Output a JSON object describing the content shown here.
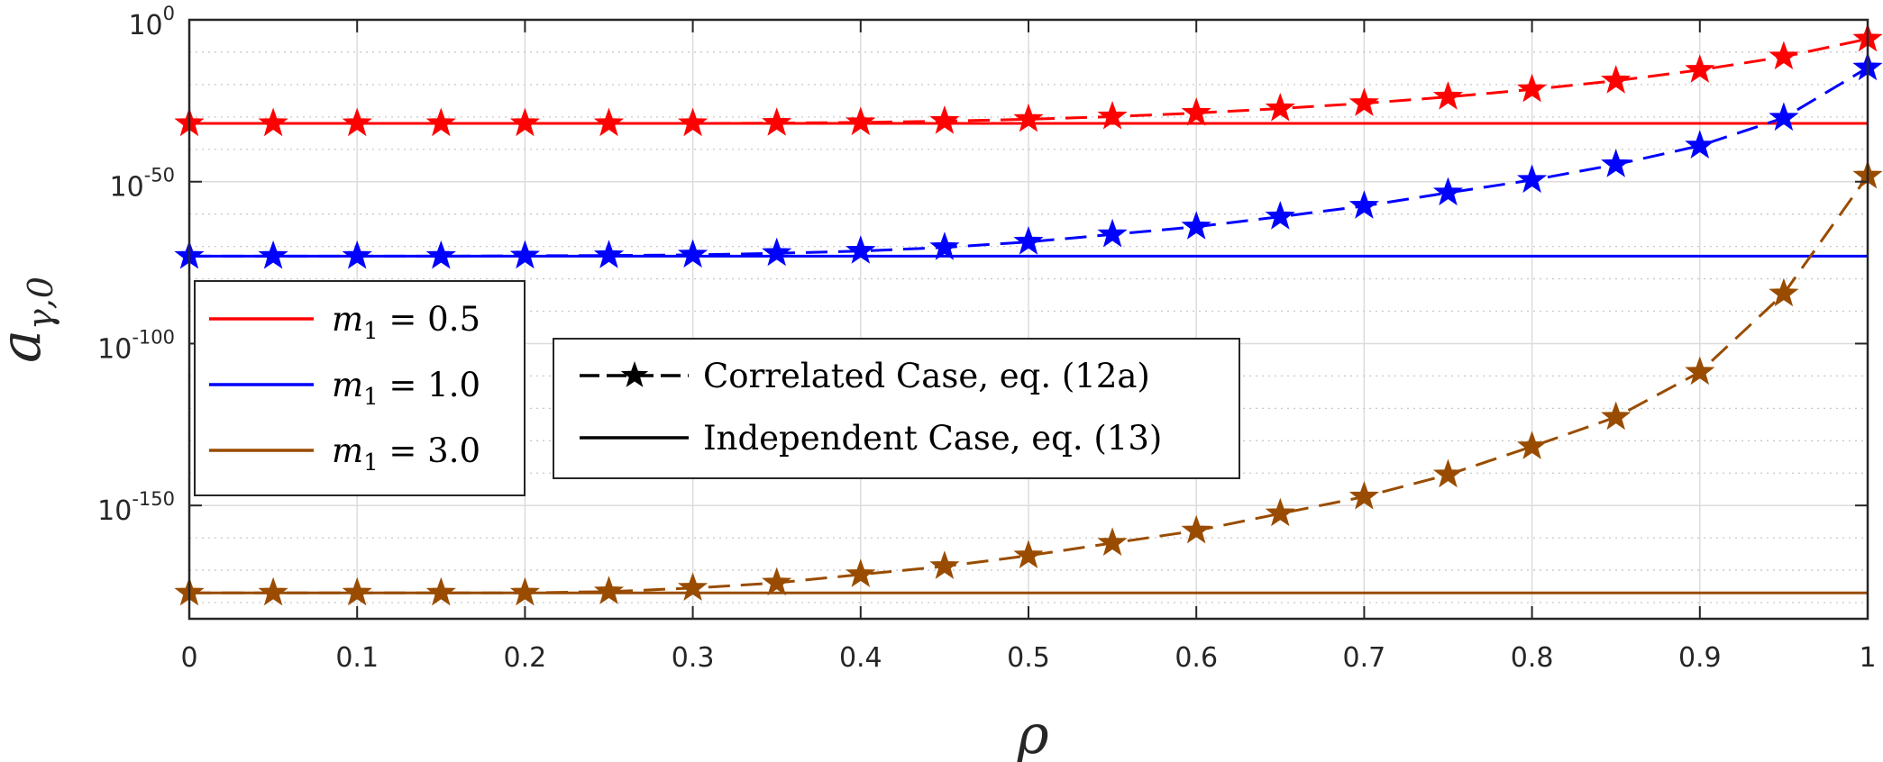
{
  "chart_data": {
    "type": "line",
    "xlabel": "ρ",
    "ylabel_main": "a",
    "ylabel_sub": "γ,0",
    "y_scale": "log",
    "xlim": [
      0,
      1
    ],
    "ylim_exp": [
      -185,
      0
    ],
    "x_ticks": [
      "0",
      "0.1",
      "0.2",
      "0.3",
      "0.4",
      "0.5",
      "0.6",
      "0.7",
      "0.8",
      "0.9",
      "1"
    ],
    "y_ticks": [
      {
        "base": "10",
        "exp": "0",
        "value_exp": 0
      },
      {
        "base": "10",
        "exp": "-50",
        "value_exp": -50
      },
      {
        "base": "10",
        "exp": "-100",
        "value_exp": -100
      },
      {
        "base": "10",
        "exp": "-150",
        "value_exp": -150
      }
    ],
    "grid": true,
    "x": [
      0,
      0.05,
      0.1,
      0.15,
      0.2,
      0.25,
      0.3,
      0.35,
      0.4,
      0.45,
      0.5,
      0.55,
      0.6,
      0.65,
      0.7,
      0.75,
      0.8,
      0.85,
      0.9,
      0.95,
      1.0
    ],
    "series": [
      {
        "name": "m_1 = 0.5",
        "color": "#ff0000",
        "correlated_exp": [
          -32,
          -32,
          -32,
          -32,
          -32,
          -32,
          -32,
          -31.9,
          -31.7,
          -31.3,
          -30.7,
          -29.9,
          -28.8,
          -27.4,
          -25.8,
          -23.8,
          -21.5,
          -18.8,
          -15.5,
          -11.4,
          -5.9
        ],
        "independent_exp": -32
      },
      {
        "name": "m_1 = 1.0",
        "color": "#0000ff",
        "correlated_exp": [
          -73,
          -73,
          -73,
          -73,
          -72.9,
          -72.8,
          -72.6,
          -72.1,
          -71.4,
          -70.3,
          -68.6,
          -66.3,
          -63.9,
          -60.8,
          -57.5,
          -53.4,
          -49.5,
          -44.7,
          -38.9,
          -30.3,
          -14.8
        ],
        "independent_exp": -73
      },
      {
        "name": "m_1 = 3.0",
        "color": "#994c00",
        "correlated_exp": [
          -177,
          -177,
          -177,
          -177,
          -177,
          -176.6,
          -175.5,
          -173.9,
          -171.3,
          -168.8,
          -165.5,
          -161.6,
          -157.8,
          -152.5,
          -147.3,
          -140.5,
          -131.8,
          -122.7,
          -108.8,
          -84.6,
          -48.2
        ],
        "independent_exp": -177
      }
    ],
    "legend_colors": {
      "position": "left",
      "entries": [
        {
          "label": "m",
          "sub": "1",
          "value": " = 0.5",
          "color": "#ff0000"
        },
        {
          "label": "m",
          "sub": "1",
          "value": " = 1.0",
          "color": "#0000ff"
        },
        {
          "label": "m",
          "sub": "1",
          "value": " = 3.0",
          "color": "#994c00"
        }
      ]
    },
    "legend_styles": {
      "position": "center-left",
      "entries": [
        {
          "label": "Correlated Case, eq. (12a)",
          "style": "dashed-star"
        },
        {
          "label": "Independent Case, eq. (13)",
          "style": "solid"
        }
      ]
    }
  }
}
